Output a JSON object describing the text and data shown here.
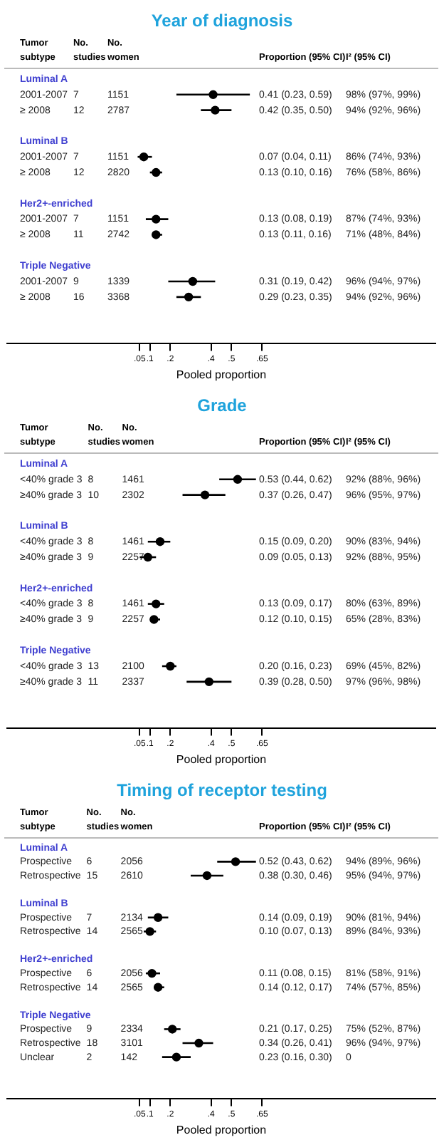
{
  "chart_data": [
    {
      "type": "scatter",
      "orientation": "horizontal",
      "title": "Year of diagnosis",
      "xlabel": "Pooled proportion",
      "color": "#000000",
      "marker": "circle",
      "categories": [
        "Luminal A",
        "2001-2007",
        "≥ 2008",
        "Luminal B",
        "2001-2007",
        "≥ 2008",
        "Her2+-enriched",
        "2001-2007",
        "≥ 2008",
        "Triple Negative",
        "2001-2007",
        "≥ 2008"
      ],
      "values": [
        null,
        0.41,
        0.42,
        null,
        0.07,
        0.13,
        null,
        0.13,
        0.13,
        null,
        0.31,
        0.29
      ],
      "errors": [
        null,
        [
          0.23,
          0.59
        ],
        [
          0.35,
          0.5
        ],
        null,
        [
          0.04,
          0.11
        ],
        [
          0.1,
          0.16
        ],
        null,
        [
          0.08,
          0.19
        ],
        [
          0.11,
          0.16
        ],
        null,
        [
          0.19,
          0.42
        ],
        [
          0.23,
          0.35
        ]
      ],
      "annotations": [
        "Tumor subtype",
        "No. studies",
        "No. women",
        "Proportion (95% CI)",
        "I² (95% CI)",
        "7",
        "1151",
        "0.41 (0.23, 0.59)",
        "98% (97%, 99%)",
        "12",
        "2787",
        "0.42 (0.35, 0.50)",
        "94% (92%, 96%)",
        "7",
        "1151",
        "0.07 (0.04, 0.11)",
        "86% (74%, 93%)",
        "12",
        "2820",
        "0.13 (0.10, 0.16)",
        "76% (58%, 86%)",
        "7",
        "1151",
        "0.13 (0.08, 0.19)",
        "87% (74%, 93%)",
        "11",
        "2742",
        "0.13 (0.11, 0.16)",
        "71% (48%, 84%)",
        "9",
        "1339",
        "0.31 (0.19, 0.42)",
        "96% (94%, 97%)",
        "16",
        "3368",
        "0.29 (0.23, 0.35)",
        "94% (92%, 96%)"
      ],
      "xlim": [
        -0.6,
        1.5
      ],
      "xticks": [
        {
          "value": 0.05,
          "label": ".05"
        },
        {
          "value": 0.1,
          "label": ".1"
        },
        {
          "value": 0.2,
          "label": ".2"
        },
        {
          "value": 0.4,
          "label": ".4"
        },
        {
          "value": 0.5,
          "label": ".5"
        },
        {
          "value": 0.65,
          "label": ".65"
        }
      ]
    },
    {
      "type": "scatter",
      "orientation": "horizontal",
      "title": "Grade",
      "xlabel": "Pooled proportion",
      "color": "#000000",
      "marker": "circle",
      "categories": [
        "Luminal A",
        "<40% grade 3",
        "≥40% grade 3",
        "Luminal B",
        "<40% grade 3",
        "≥40% grade 3",
        "Her2+-enriched",
        "<40% grade 3",
        "≥40% grade 3",
        "Triple Negative",
        "<40% grade 3",
        "≥40% grade 3"
      ],
      "values": [
        null,
        0.53,
        0.37,
        null,
        0.15,
        0.09,
        null,
        0.13,
        0.12,
        null,
        0.2,
        0.39
      ],
      "errors": [
        null,
        [
          0.44,
          0.62
        ],
        [
          0.26,
          0.47
        ],
        null,
        [
          0.09,
          0.2
        ],
        [
          0.05,
          0.13
        ],
        null,
        [
          0.09,
          0.17
        ],
        [
          0.1,
          0.15
        ],
        null,
        [
          0.16,
          0.23
        ],
        [
          0.28,
          0.5
        ]
      ],
      "annotations": [
        "Tumor subtype",
        "No. studies",
        "No. women",
        "Proportion (95% CI)",
        "I² (95% CI)",
        "8",
        "1461",
        "0.53 (0.44, 0.62)",
        "92% (88%, 96%)",
        "10",
        "2302",
        "0.37 (0.26, 0.47)",
        "96% (95%, 97%)",
        "8",
        "1461",
        "0.15 (0.09, 0.20)",
        "90% (83%, 94%)",
        "9",
        "2257",
        "0.09 (0.05, 0.13)",
        "92% (88%, 95%)",
        "8",
        "1461",
        "0.13 (0.09, 0.17)",
        "80% (63%, 89%)",
        "9",
        "2257",
        "0.12 (0.10, 0.15)",
        "65% (28%, 83%)",
        "13",
        "2100",
        "0.20 (0.16, 0.23)",
        "69% (45%, 82%)",
        "11",
        "2337",
        "0.39 (0.28, 0.50)",
        "97% (96%, 98%)"
      ],
      "xlim": [
        -0.6,
        1.5
      ],
      "xticks": [
        {
          "value": 0.05,
          "label": ".05"
        },
        {
          "value": 0.1,
          "label": ".1"
        },
        {
          "value": 0.2,
          "label": ".2"
        },
        {
          "value": 0.4,
          "label": ".4"
        },
        {
          "value": 0.5,
          "label": ".5"
        },
        {
          "value": 0.65,
          "label": ".65"
        }
      ]
    },
    {
      "type": "scatter",
      "orientation": "horizontal",
      "title": "Timing of receptor testing",
      "xlabel": "Pooled proportion",
      "color": "#000000",
      "marker": "circle",
      "categories": [
        "Luminal A",
        "Prospective",
        "Retrospective",
        "Luminal B",
        "Prospective",
        "Retrospective",
        "Her2+-enriched",
        "Prospective",
        "Retrospective",
        "Triple Negative",
        "Prospective",
        "Retrospective",
        "Unclear"
      ],
      "values": [
        null,
        0.52,
        0.38,
        null,
        0.14,
        0.1,
        null,
        0.11,
        0.14,
        null,
        0.21,
        0.34,
        0.23
      ],
      "errors": [
        null,
        [
          0.43,
          0.62
        ],
        [
          0.3,
          0.46
        ],
        null,
        [
          0.09,
          0.19
        ],
        [
          0.07,
          0.13
        ],
        null,
        [
          0.08,
          0.15
        ],
        [
          0.12,
          0.17
        ],
        null,
        [
          0.17,
          0.25
        ],
        [
          0.26,
          0.41
        ],
        [
          0.16,
          0.3
        ]
      ],
      "annotations": [
        "Tumor subtype",
        "No. studies",
        "No. women",
        "Proportion (95% CI)",
        "I² (95% CI)",
        "6",
        "2056",
        "0.52 (0.43, 0.62)",
        "94% (89%, 96%)",
        "15",
        "2610",
        "0.38 (0.30, 0.46)",
        "95% (94%, 97%)",
        "7",
        "2134",
        "0.14 (0.09, 0.19)",
        "90% (81%, 94%)",
        "14",
        "2565",
        "0.10 (0.07, 0.13)",
        "89% (84%, 93%)",
        "6",
        "2056",
        "0.11 (0.08, 0.15)",
        "81% (58%, 91%)",
        "14",
        "2565",
        "0.14 (0.12, 0.17)",
        "74% (57%, 85%)",
        "9",
        "2334",
        "0.21 (0.17, 0.25)",
        "75% (52%, 87%)",
        "18",
        "3101",
        "0.34 (0.26, 0.41)",
        "96% (94%, 97%)",
        "2",
        "142",
        "0.23 (0.16, 0.30)",
        "0"
      ],
      "xlim": [
        -0.6,
        1.5
      ],
      "xticks": [
        {
          "value": 0.05,
          "label": ".05"
        },
        {
          "value": 0.1,
          "label": ".1"
        },
        {
          "value": 0.2,
          "label": ".2"
        },
        {
          "value": 0.4,
          "label": ".4"
        },
        {
          "value": 0.5,
          "label": ".5"
        },
        {
          "value": 0.65,
          "label": ".65"
        }
      ]
    }
  ]
}
